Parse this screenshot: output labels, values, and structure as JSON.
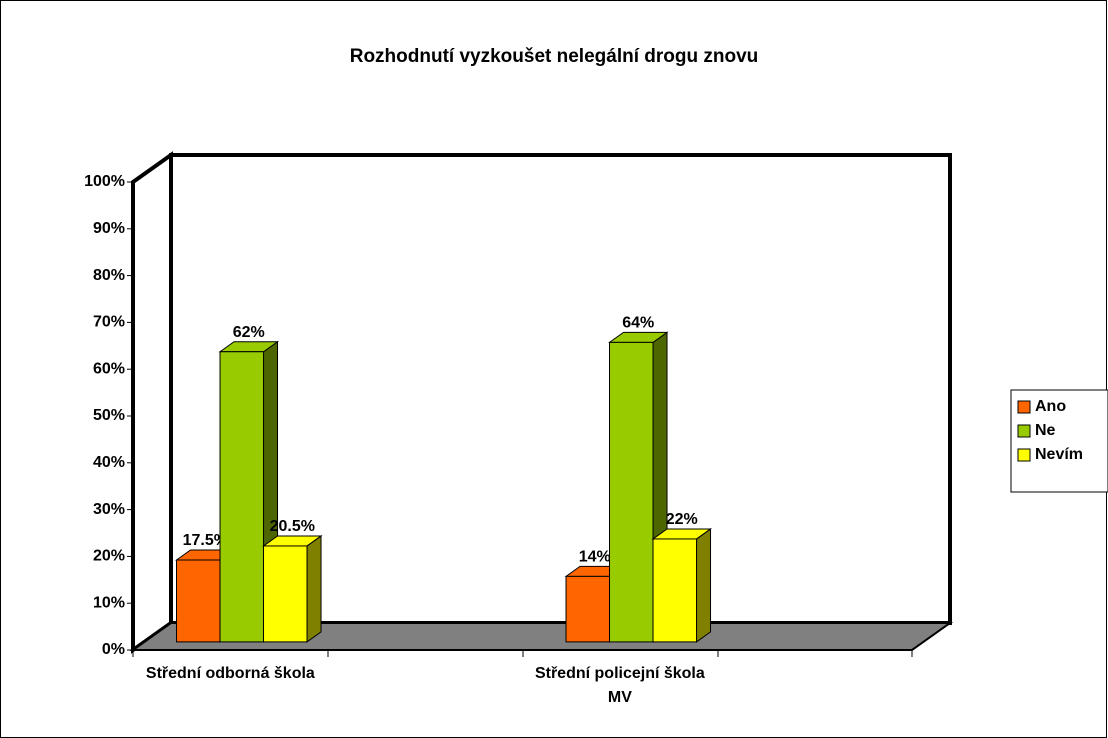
{
  "chart_data": {
    "type": "bar3d",
    "title": "Rozhodnutí vyzkoušet nelegální drogu znovu",
    "categories": [
      "Střední odborná škola",
      "Střední policejní škola MV"
    ],
    "series": [
      {
        "name": "Ano",
        "color": "#ff6600",
        "values": [
          17.5,
          14
        ],
        "value_labels": [
          "17.5%",
          "14%"
        ]
      },
      {
        "name": "Ne",
        "color": "#99cc00",
        "values": [
          62,
          64
        ],
        "value_labels": [
          "62%",
          "64%"
        ]
      },
      {
        "name": "Nevím",
        "color": "#ffff00",
        "values": [
          20.5,
          22
        ],
        "value_labels": [
          "20.5%",
          "22%"
        ]
      }
    ],
    "ylim": [
      0,
      100
    ],
    "yticks": [
      {
        "value": 0,
        "label": "0%"
      },
      {
        "value": 10,
        "label": "10%"
      },
      {
        "value": 20,
        "label": "20%"
      },
      {
        "value": 30,
        "label": "30%"
      },
      {
        "value": 40,
        "label": "40%"
      },
      {
        "value": 50,
        "label": "50%"
      },
      {
        "value": 60,
        "label": "60%"
      },
      {
        "value": 70,
        "label": "70%"
      },
      {
        "value": 80,
        "label": "80%"
      },
      {
        "value": 90,
        "label": "90%"
      },
      {
        "value": 100,
        "label": "100%"
      }
    ],
    "grid": false,
    "legend": "right"
  }
}
